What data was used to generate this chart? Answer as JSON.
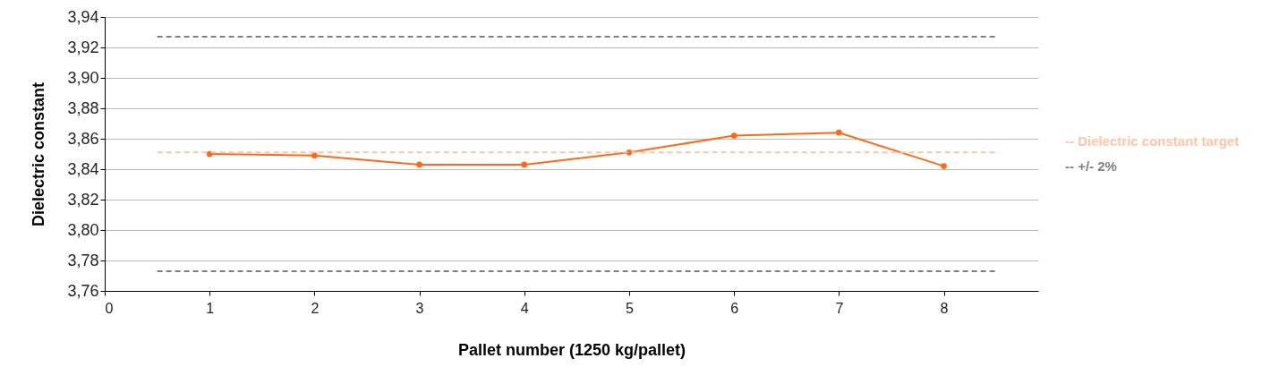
{
  "chart_data": {
    "type": "line",
    "xlabel": "Pallet number (1250 kg/pallet)",
    "ylabel": "Dielectric constant",
    "xlim": [
      0,
      8.9
    ],
    "xticks": [
      0,
      1,
      2,
      3,
      4,
      5,
      6,
      7,
      8
    ],
    "ylim": [
      3.76,
      3.94
    ],
    "yticks": [
      {
        "value": 3.76,
        "label": "3,76"
      },
      {
        "value": 3.78,
        "label": "3,78"
      },
      {
        "value": 3.8,
        "label": "3,80"
      },
      {
        "value": 3.82,
        "label": "3,82"
      },
      {
        "value": 3.84,
        "label": "3,84"
      },
      {
        "value": 3.86,
        "label": "3,86"
      },
      {
        "value": 3.88,
        "label": "3,88"
      },
      {
        "value": 3.9,
        "label": "3,90"
      },
      {
        "value": 3.92,
        "label": "3,92"
      },
      {
        "value": 3.94,
        "label": "3,94"
      }
    ],
    "grid": "y",
    "legend": "right",
    "marker": "circle",
    "line_style": "solid",
    "series": [
      {
        "color": "#ff6a1a",
        "x": [
          1,
          2,
          3,
          4,
          5,
          6,
          7,
          8
        ],
        "values": [
          3.85,
          3.849,
          3.843,
          3.843,
          3.851,
          3.862,
          3.864,
          3.842
        ]
      },
      {
        "name": "-- Dielectric constant target",
        "color": "#ffc4a6",
        "x": [
          0.5,
          8.5
        ],
        "values": [
          3.851,
          3.851
        ],
        "marker": "none",
        "line_style": "dashed"
      },
      {
        "name": "-- +/- 2%",
        "color": "#808080",
        "x": [
          0.5,
          8.5
        ],
        "values": [
          3.927,
          3.927
        ],
        "marker": "none",
        "line_style": "dashed"
      },
      {
        "color": "#808080",
        "x": [
          0.5,
          8.5
        ],
        "values": [
          3.773,
          3.773
        ],
        "marker": "none",
        "line_style": "dashed"
      }
    ]
  }
}
